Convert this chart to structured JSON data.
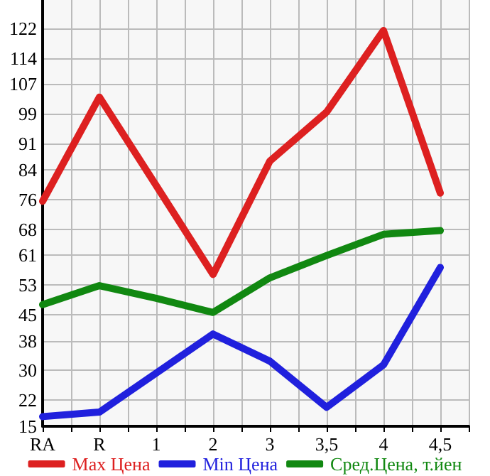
{
  "chart_data": {
    "type": "line",
    "categories": [
      "RA",
      "R",
      "1",
      "2",
      "3",
      "3,5",
      "4",
      "4,5"
    ],
    "series": [
      {
        "name": "Max Цена",
        "color": "#dd2020",
        "values": [
          75.5,
          103.5,
          79.7,
          55.8,
          86.3,
          99.5,
          121.4,
          77.7
        ]
      },
      {
        "name": "Min Цена",
        "color": "#2020dd",
        "values": [
          17.6,
          18.8,
          29.3,
          39.8,
          32.5,
          20.1,
          31.5,
          57.7
        ]
      },
      {
        "name": "Сред.Цена, т.йен",
        "color": "#118811",
        "values": [
          47.7,
          52.8,
          49.4,
          45.6,
          54.9,
          60.9,
          66.6,
          67.6
        ]
      }
    ],
    "ylim": [
      15,
      129.6
    ],
    "yticks": [
      15,
      22,
      30,
      38,
      45,
      53,
      61,
      68,
      76,
      84,
      91,
      99,
      107,
      114,
      122
    ],
    "grid": true,
    "legend": "bottom",
    "marker": "none",
    "line_style": "solid"
  }
}
